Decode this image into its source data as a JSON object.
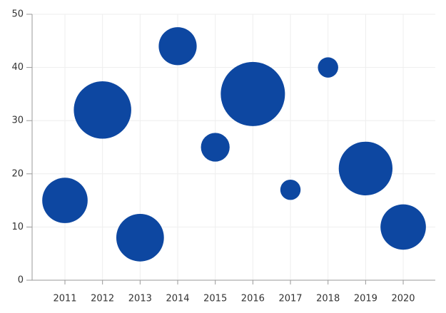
{
  "chart_data": {
    "type": "bubble",
    "categories": [
      "2011",
      "2012",
      "2013",
      "2014",
      "2015",
      "2016",
      "2017",
      "2018",
      "2019",
      "2020"
    ],
    "series": [
      {
        "color": "#0d47a1",
        "values": [
          15,
          32,
          8,
          44,
          25,
          35,
          17,
          40,
          21,
          10
        ],
        "sizes": [
          10,
          16,
          11,
          7,
          4,
          20,
          2,
          2,
          14,
          10
        ]
      }
    ],
    "ylim": [
      0,
      50
    ],
    "yticks": [
      0,
      10,
      20,
      30,
      40,
      50
    ],
    "grid": true
  }
}
